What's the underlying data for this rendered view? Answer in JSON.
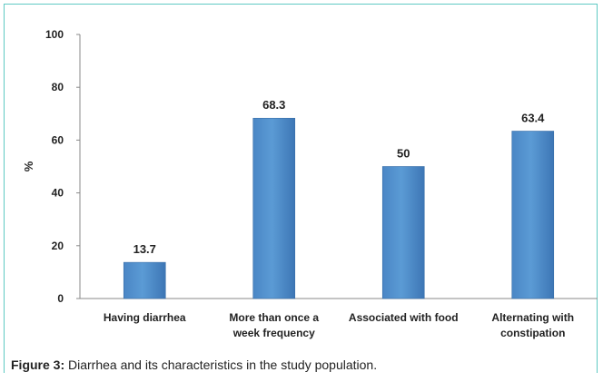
{
  "chart_data": {
    "type": "bar",
    "categories": [
      [
        "Having diarrhea"
      ],
      [
        "More than once a",
        "week frequency"
      ],
      [
        "Associated with food"
      ],
      [
        "Alternating with",
        "constipation"
      ]
    ],
    "values": [
      13.7,
      68.3,
      50,
      63.4
    ],
    "value_labels": [
      "13.7",
      "68.3",
      "50",
      "63.4"
    ],
    "ylabel": "%",
    "ylim": [
      0,
      100
    ],
    "yticks": [
      0,
      20,
      40,
      60,
      80,
      100
    ],
    "bar_color": "#5b9bd5",
    "grid": false
  },
  "caption": {
    "label": "Figure 3:",
    "text": " Diarrhea and its characteristics in the study population."
  },
  "colors": {
    "frame": "#5fc9c3",
    "axis": "#888888"
  }
}
